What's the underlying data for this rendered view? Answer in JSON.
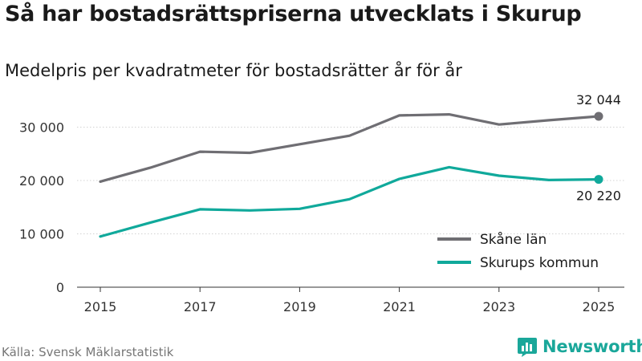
{
  "header": {
    "title": "Så har bostadsrättspriserna utvecklats i Skurup",
    "subtitle": "Medelpris per kvadratmeter för bostadsrätter år för år"
  },
  "footer": {
    "source": "Källa: Svensk Mäklarstatistik",
    "brand": "Newsworthy"
  },
  "icons": {
    "brand": "newsworthy-logo-icon"
  },
  "colors": {
    "skane": "#6f6e73",
    "skurup": "#10a99b",
    "brand": "#1aa79a"
  },
  "chart_data": {
    "type": "line",
    "title": "Så har bostadsrättspriserna utvecklats i Skurup",
    "subtitle": "Medelpris per kvadratmeter för bostadsrätter år för år",
    "xlabel": "",
    "ylabel": "",
    "x": [
      2015,
      2016,
      2017,
      2018,
      2019,
      2020,
      2021,
      2022,
      2023,
      2024,
      2025
    ],
    "xticks": [
      2015,
      2017,
      2019,
      2021,
      2023,
      2025
    ],
    "xtick_labels": [
      "2015",
      "2017",
      "2019",
      "2021",
      "2023",
      "2025"
    ],
    "yticks": [
      0,
      10000,
      20000,
      30000
    ],
    "ytick_labels": [
      "0",
      "10 000",
      "20 000",
      "30 000"
    ],
    "xlim": [
      2015,
      2025
    ],
    "ylim": [
      0,
      37000
    ],
    "grid": "horizontal",
    "legend_position": "bottom-right",
    "series": [
      {
        "name": "Skåne län",
        "color": "#6f6e73",
        "values": [
          19800,
          22400,
          25400,
          25200,
          26800,
          28400,
          32200,
          32400,
          30500,
          31300,
          32044
        ],
        "end_label": "32 044",
        "end_label_position": "above"
      },
      {
        "name": "Skurups kommun",
        "color": "#10a99b",
        "values": [
          9500,
          12100,
          14600,
          14400,
          14700,
          16500,
          20300,
          22500,
          20900,
          20100,
          20220
        ],
        "end_label": "20 220",
        "end_label_position": "below"
      }
    ]
  }
}
